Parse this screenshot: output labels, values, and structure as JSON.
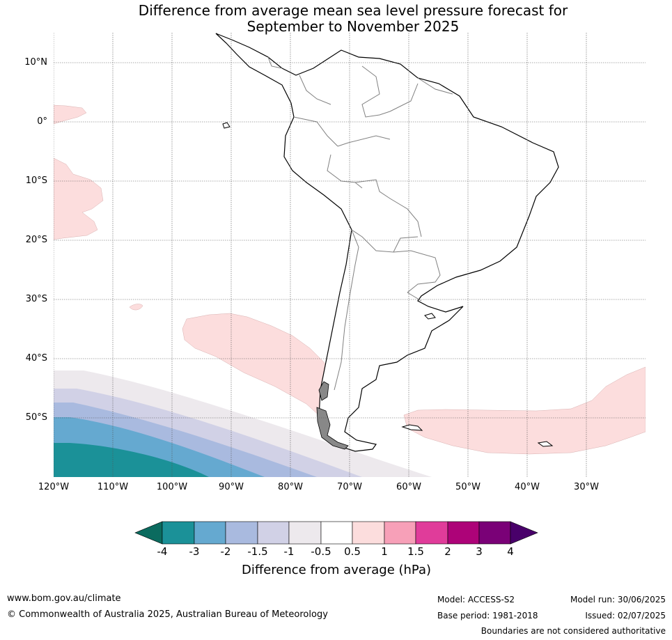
{
  "title": {
    "line1": "Difference from average mean sea level pressure forecast for",
    "line2": "September to November 2025"
  },
  "map": {
    "lon_range": [
      -120,
      -20
    ],
    "lat_range": [
      -60,
      15
    ],
    "lat_labels": [
      "10°N",
      "0°",
      "10°S",
      "20°S",
      "30°S",
      "40°S",
      "50°S"
    ],
    "lon_labels": [
      "120°W",
      "110°W",
      "100°W",
      "90°W",
      "80°W",
      "70°W",
      "60°W",
      "50°W",
      "40°W",
      "30°W"
    ],
    "gridlines": "dotted",
    "land_fill": "#ffffff",
    "coastline_color": "#000000",
    "border_color": "#808080"
  },
  "colorbar": {
    "ticks": [
      "-4",
      "-3",
      "-2",
      "-1.5",
      "-1",
      "-0.5",
      "0.5",
      "1",
      "1.5",
      "2",
      "3",
      "4"
    ],
    "colors": [
      "#1b9198",
      "#65a9d0",
      "#a9badf",
      "#d1d1e6",
      "#ede9ed",
      "#ffffff",
      "#fcdddd",
      "#f7a0b8",
      "#e03c9a",
      "#ad0378",
      "#7a0177"
    ],
    "under_color": "#0b6b5f",
    "over_color": "#49006a",
    "label": "Difference from average (hPa)"
  },
  "footer": {
    "website": "www.bom.gov.au/climate",
    "copyright": "© Commonwealth of Australia 2025, Australian Bureau of Meteorology",
    "model": "Model: ACCESS-S2",
    "base_period": "Base period: 1981-2018",
    "model_run": "Model run: 30/06/2025",
    "issued": "Issued: 02/07/2025",
    "disclaimer": "Boundaries are not considered authoritative"
  }
}
